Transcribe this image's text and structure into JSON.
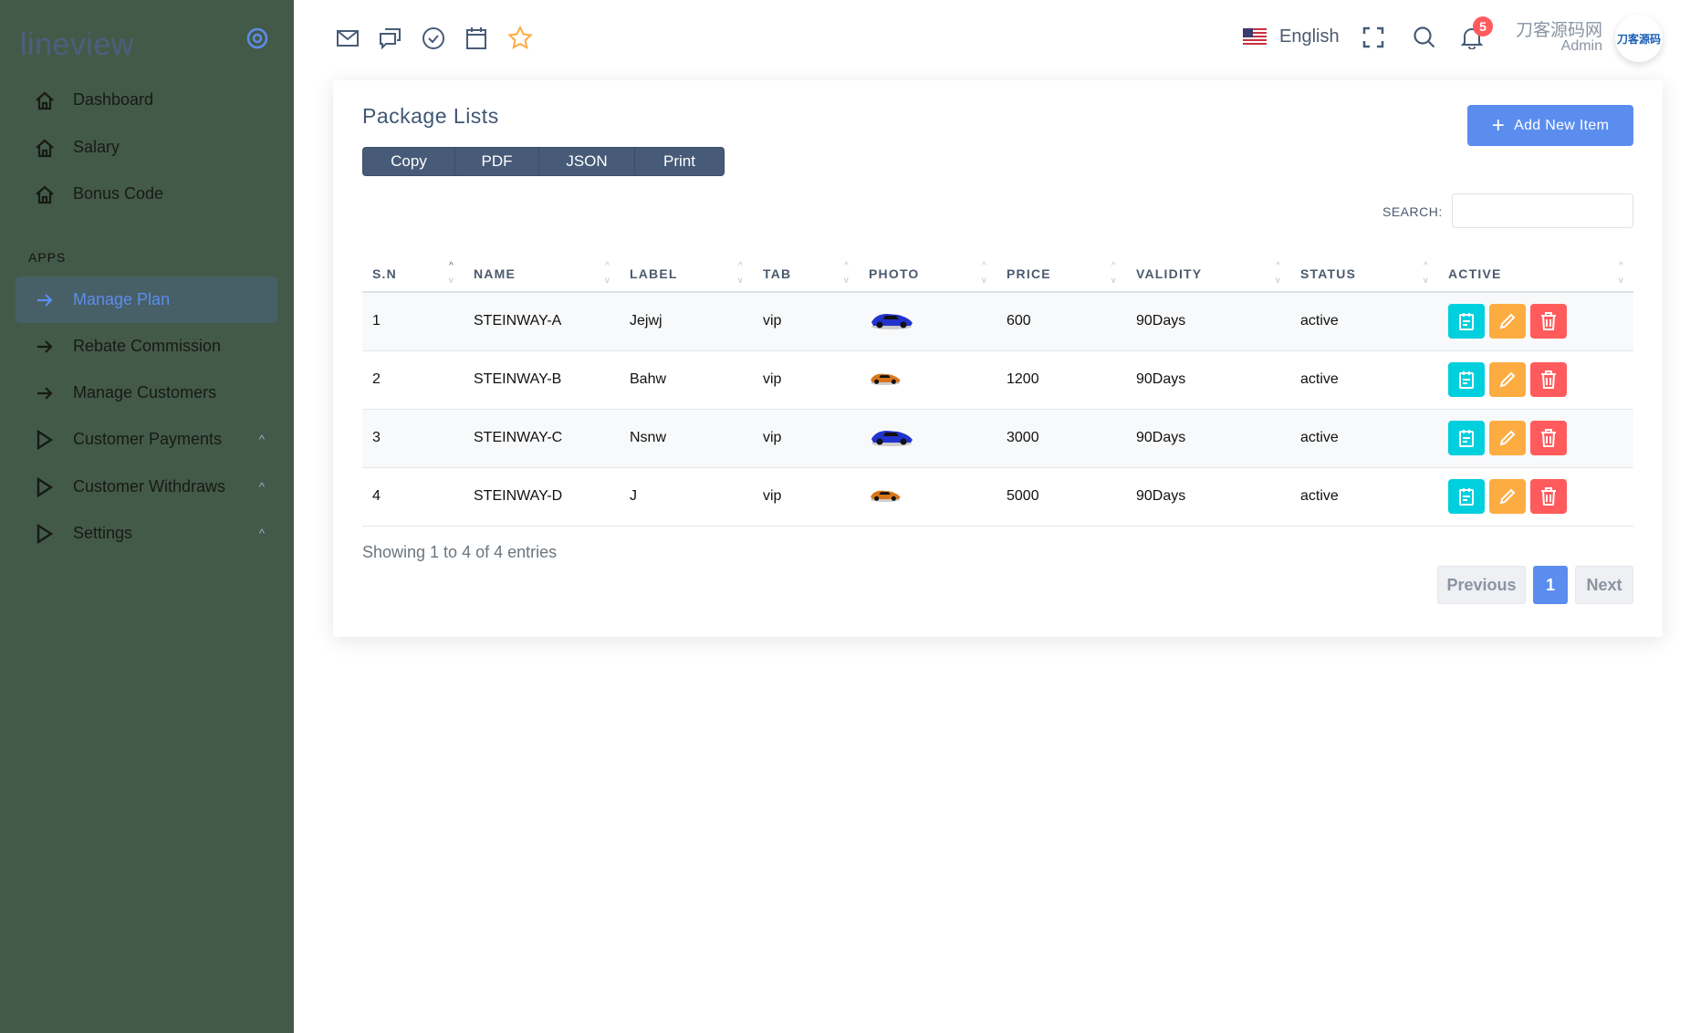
{
  "sidebar": {
    "logo": "lineview",
    "section_label": "APPS",
    "items": [
      {
        "label": "Dashboard",
        "icon": "home-icon"
      },
      {
        "label": "Salary",
        "icon": "home-icon"
      },
      {
        "label": "Bonus Code",
        "icon": "home-icon"
      }
    ],
    "apps": [
      {
        "label": "Manage Plan",
        "icon": "arrow-right-icon",
        "active": true
      },
      {
        "label": "Rebate Commission",
        "icon": "arrow-right-icon"
      },
      {
        "label": "Manage Customers",
        "icon": "arrow-right-icon"
      },
      {
        "label": "Customer Payments",
        "icon": "play-icon",
        "expandable": true
      },
      {
        "label": "Customer Withdraws",
        "icon": "play-icon",
        "expandable": true
      },
      {
        "label": "Settings",
        "icon": "play-icon",
        "expandable": true
      }
    ]
  },
  "topbar": {
    "icons": [
      "mail-icon",
      "chat-icon",
      "check-circle-icon",
      "calendar-icon",
      "star-icon"
    ],
    "language": "English",
    "notification_count": "5",
    "user_name": "刀客源码网",
    "user_role": "Admin",
    "avatar_text": "刀客源码"
  },
  "card": {
    "title": "Package Lists",
    "export_buttons": [
      "Copy",
      "PDF",
      "JSON",
      "Print"
    ],
    "add_button": "Add New Item",
    "search_label": "SEARCH:",
    "search_value": "",
    "columns": [
      "S.N",
      "NAME",
      "LABEL",
      "TAB",
      "PHOTO",
      "PRICE",
      "VALIDITY",
      "STATUS",
      "ACTIVE"
    ],
    "rows": [
      {
        "sn": "1",
        "name": "STEINWAY-A",
        "label": "Jejwj",
        "tab": "vip",
        "photo": "blue-car",
        "price": "600",
        "validity": "90Days",
        "status": "active"
      },
      {
        "sn": "2",
        "name": "STEINWAY-B",
        "label": "Bahw",
        "tab": "vip",
        "photo": "orange-car",
        "price": "1200",
        "validity": "90Days",
        "status": "active"
      },
      {
        "sn": "3",
        "name": "STEINWAY-C",
        "label": "Nsnw",
        "tab": "vip",
        "photo": "blue-car",
        "price": "3000",
        "validity": "90Days",
        "status": "active"
      },
      {
        "sn": "4",
        "name": "STEINWAY-D",
        "label": "J",
        "tab": "vip",
        "photo": "orange-car",
        "price": "5000",
        "validity": "90Days",
        "status": "active"
      }
    ],
    "info": "Showing 1 to 4 of 4 entries",
    "pagination": {
      "previous": "Previous",
      "current": "1",
      "next": "Next"
    }
  },
  "colors": {
    "sidebar": "#445a48",
    "accent": "#5b8def",
    "view": "#00cfdd",
    "edit": "#fdac41",
    "delete": "#ff5b5c"
  }
}
